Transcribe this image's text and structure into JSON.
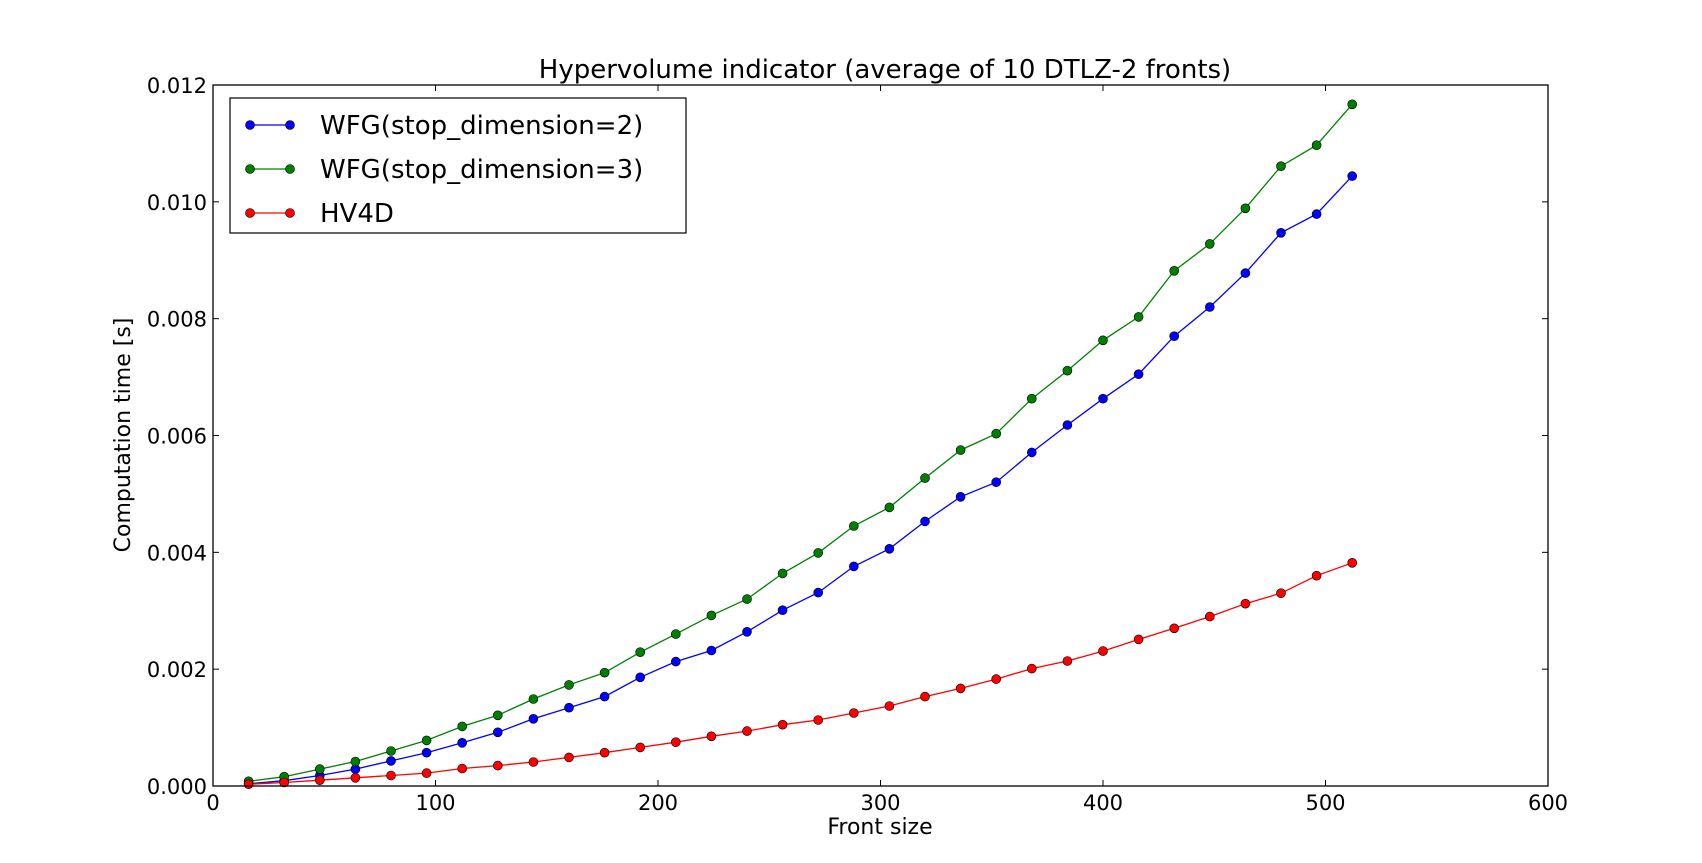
{
  "chart_data": {
    "type": "line",
    "title": "Hypervolume indicator (average of 10 DTLZ-2 fronts)",
    "xlabel": "Front size",
    "ylabel": "Computation time [s]",
    "xlim": [
      0,
      600
    ],
    "ylim": [
      0,
      0.012
    ],
    "xticks": [
      0,
      100,
      200,
      300,
      400,
      500,
      600
    ],
    "yticks": [
      0,
      0.002,
      0.004,
      0.006,
      0.008,
      0.01,
      0.012
    ],
    "xtick_labels": [
      "0",
      "100",
      "200",
      "300",
      "400",
      "500",
      "600"
    ],
    "ytick_labels": [
      "0.000",
      "0.002",
      "0.004",
      "0.006",
      "0.008",
      "0.010",
      "0.012"
    ],
    "grid": false,
    "legend_position": "upper-left",
    "x": [
      16,
      32,
      48,
      64,
      80,
      96,
      112,
      128,
      144,
      160,
      176,
      192,
      208,
      224,
      240,
      256,
      272,
      288,
      304,
      320,
      336,
      352,
      368,
      384,
      400,
      416,
      432,
      448,
      464,
      480,
      496,
      512
    ],
    "series": [
      {
        "name": "WFG(stop_dimension=2)",
        "color": "#0000ff",
        "values": [
          4e-05,
          9e-05,
          0.00018,
          0.00029,
          0.00043,
          0.00057,
          0.00074,
          0.00092,
          0.00115,
          0.00134,
          0.00153,
          0.00186,
          0.00213,
          0.00232,
          0.00264,
          0.00301,
          0.00331,
          0.00376,
          0.00406,
          0.00453,
          0.00495,
          0.0052,
          0.00571,
          0.00618,
          0.00663,
          0.00705,
          0.0077,
          0.0082,
          0.00878,
          0.00947,
          0.00979,
          0.01044
        ]
      },
      {
        "name": "WFG(stop_dimension=3)",
        "color": "#008000",
        "values": [
          8e-05,
          0.00016,
          0.00029,
          0.00042,
          0.0006,
          0.00078,
          0.00102,
          0.00121,
          0.00149,
          0.00173,
          0.00194,
          0.00229,
          0.0026,
          0.00292,
          0.0032,
          0.00364,
          0.00399,
          0.00445,
          0.00477,
          0.00527,
          0.00575,
          0.00603,
          0.00663,
          0.00711,
          0.00763,
          0.00803,
          0.00882,
          0.00928,
          0.00989,
          0.01061,
          0.01097,
          0.01167
        ]
      },
      {
        "name": "HV4D",
        "color": "#ff0000",
        "values": [
          3e-05,
          6e-05,
          0.0001,
          0.00014,
          0.00018,
          0.00022,
          0.0003,
          0.00035,
          0.00041,
          0.00049,
          0.00057,
          0.00066,
          0.00075,
          0.00085,
          0.00094,
          0.00105,
          0.00113,
          0.00125,
          0.00137,
          0.00153,
          0.00167,
          0.00183,
          0.00201,
          0.00214,
          0.00231,
          0.00251,
          0.0027,
          0.0029,
          0.00312,
          0.0033,
          0.0036,
          0.00382
        ]
      }
    ]
  }
}
